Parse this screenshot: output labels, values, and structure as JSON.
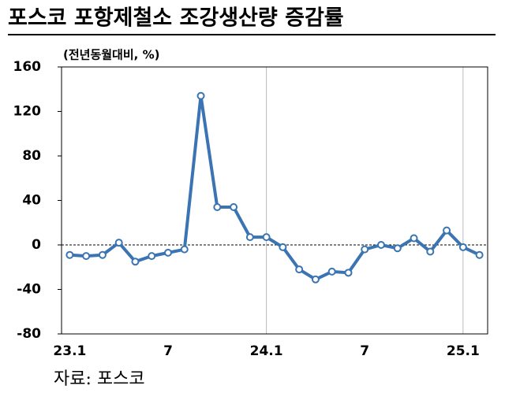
{
  "chart_data": {
    "type": "line",
    "title": "포스코 포항제철소 조강생산량 증감률",
    "y_label": "(전년동월대비, %)",
    "source": "자료: 포스코",
    "categories": [
      "23.1",
      null,
      null,
      null,
      null,
      null,
      "7",
      null,
      null,
      null,
      null,
      null,
      "24.1",
      null,
      null,
      null,
      null,
      null,
      "7",
      null,
      null,
      null,
      null,
      null,
      "25.1",
      null
    ],
    "series": [
      {
        "name": "조강생산량 증감률",
        "color": "#3a74b2",
        "values": [
          -9,
          -10,
          -9,
          2,
          -15,
          -10,
          -7,
          -4,
          134,
          34,
          34,
          7,
          7,
          -2,
          -22,
          -31,
          -24,
          -25,
          -4,
          0,
          -3,
          6,
          -6,
          13,
          -2,
          -9
        ]
      }
    ],
    "ylim": [
      -80,
      160
    ],
    "yticks": [
      -80,
      -40,
      0,
      40,
      80,
      120,
      160
    ]
  }
}
